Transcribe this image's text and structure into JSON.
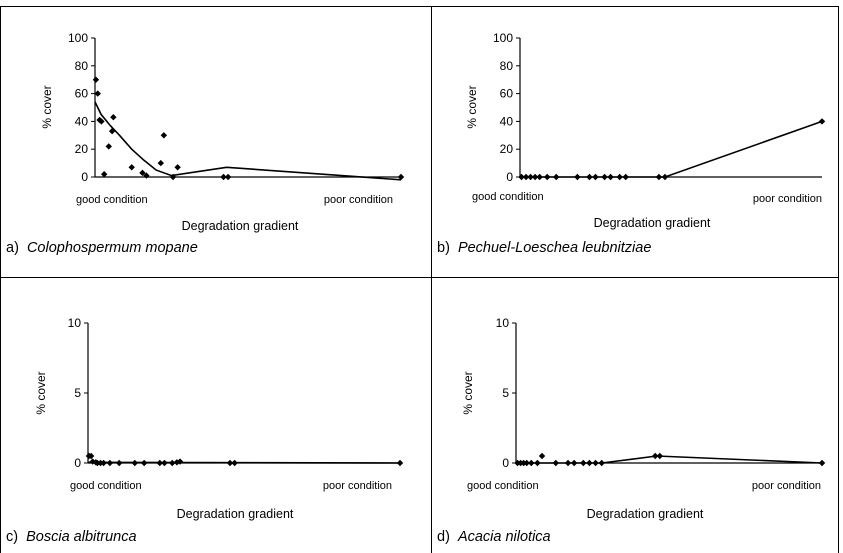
{
  "chart_data": [
    {
      "type": "scatter",
      "panel_label": "a)",
      "species": "Colophospermum mopane",
      "xlabel": "Degradation gradient",
      "ylabel": "% cover",
      "x_left_label": "good condition",
      "x_right_label": "poor condition",
      "ylim": [
        0,
        100
      ],
      "yticks": [
        "0",
        "20",
        "40",
        "60",
        "80",
        "100"
      ],
      "grid": false,
      "points": [
        [
          0.3,
          70
        ],
        [
          0.9,
          60
        ],
        [
          1.5,
          41
        ],
        [
          2.1,
          40
        ],
        [
          3.0,
          2
        ],
        [
          4.5,
          22
        ],
        [
          5.6,
          33
        ],
        [
          6.0,
          43
        ],
        [
          12.0,
          7
        ],
        [
          15.5,
          3
        ],
        [
          16.8,
          1
        ],
        [
          21.5,
          10
        ],
        [
          22.5,
          30
        ],
        [
          25.5,
          0
        ],
        [
          27.0,
          7
        ],
        [
          42.0,
          0
        ],
        [
          43.5,
          0
        ],
        [
          100.0,
          0
        ]
      ],
      "trend": [
        [
          0,
          54
        ],
        [
          2,
          45
        ],
        [
          5,
          37
        ],
        [
          8,
          30
        ],
        [
          12,
          20
        ],
        [
          16,
          12
        ],
        [
          20,
          5
        ],
        [
          25,
          1
        ],
        [
          43,
          7
        ],
        [
          100,
          -2
        ]
      ]
    },
    {
      "type": "scatter",
      "panel_label": "b)",
      "species": "Pechuel-Loeschea leubnitziae",
      "xlabel": "Degradation gradient",
      "ylabel": "% cover",
      "x_left_label": "good condition",
      "x_right_label": "poor condition",
      "ylim": [
        0,
        100
      ],
      "yticks": [
        "0",
        "20",
        "40",
        "60",
        "80",
        "100"
      ],
      "grid": false,
      "points": [
        [
          0.5,
          0
        ],
        [
          2.0,
          0
        ],
        [
          3.5,
          0
        ],
        [
          5.0,
          0
        ],
        [
          6.5,
          0
        ],
        [
          9.0,
          0
        ],
        [
          12.0,
          0
        ],
        [
          19.0,
          0
        ],
        [
          23.0,
          0
        ],
        [
          25.0,
          0
        ],
        [
          28.0,
          0
        ],
        [
          30.0,
          0
        ],
        [
          33.0,
          0
        ],
        [
          35.0,
          0
        ],
        [
          46.0,
          0
        ],
        [
          48.0,
          0
        ],
        [
          100.0,
          40
        ]
      ],
      "trend": [
        [
          0,
          0
        ],
        [
          48,
          0
        ],
        [
          100,
          40
        ]
      ]
    },
    {
      "type": "scatter",
      "panel_label": "c)",
      "species": "Boscia albitrunca",
      "xlabel": "Degradation gradient",
      "ylabel": "% cover",
      "x_left_label": "good condition",
      "x_right_label": "poor condition",
      "ylim": [
        0,
        10
      ],
      "yticks": [
        "0",
        "5",
        "10"
      ],
      "grid": false,
      "points": [
        [
          0.3,
          0.5
        ],
        [
          1.0,
          0.5
        ],
        [
          1.5,
          0.1
        ],
        [
          2.5,
          0.05
        ],
        [
          3.0,
          0
        ],
        [
          4.0,
          0
        ],
        [
          5.0,
          0
        ],
        [
          7.0,
          0
        ],
        [
          10.0,
          0
        ],
        [
          15.0,
          0
        ],
        [
          18.0,
          0
        ],
        [
          23.0,
          0
        ],
        [
          24.5,
          0
        ],
        [
          27.0,
          0
        ],
        [
          28.5,
          0.05
        ],
        [
          29.5,
          0.1
        ],
        [
          45.5,
          0
        ],
        [
          47.0,
          0
        ],
        [
          100.0,
          0
        ]
      ],
      "trend": [
        [
          0,
          0.05
        ],
        [
          100,
          0
        ]
      ]
    },
    {
      "type": "scatter",
      "panel_label": "d)",
      "species": "Acacia nilotica",
      "xlabel": "Degradation gradient",
      "ylabel": "% cover",
      "x_left_label": "good condition",
      "x_right_label": "poor condition",
      "ylim": [
        0,
        10
      ],
      "yticks": [
        "0",
        "5",
        "10"
      ],
      "grid": false,
      "points": [
        [
          0.5,
          0
        ],
        [
          1.5,
          0
        ],
        [
          2.5,
          0
        ],
        [
          3.5,
          0
        ],
        [
          5.0,
          0
        ],
        [
          7.0,
          0
        ],
        [
          8.5,
          0.5
        ],
        [
          13.0,
          0
        ],
        [
          17.0,
          0
        ],
        [
          19.0,
          0
        ],
        [
          22.0,
          0
        ],
        [
          24.0,
          0
        ],
        [
          26.0,
          0
        ],
        [
          28.0,
          0
        ],
        [
          45.5,
          0.5
        ],
        [
          47.0,
          0.5
        ],
        [
          100.0,
          0
        ]
      ],
      "trend": [
        [
          0,
          0
        ],
        [
          28,
          0
        ],
        [
          46,
          0.5
        ],
        [
          100,
          0
        ]
      ]
    }
  ]
}
